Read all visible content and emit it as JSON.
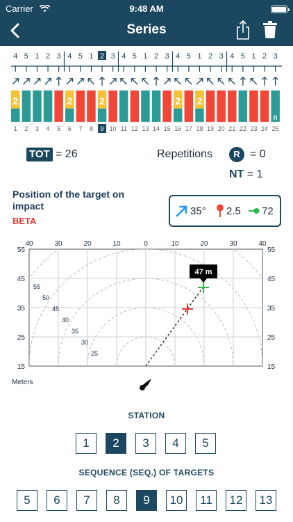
{
  "status_bar": {
    "carrier": "Carrier",
    "time": "9:48 AM"
  },
  "nav": {
    "title": "Series"
  },
  "strip": {
    "top_numbers": [
      "4",
      "5",
      "1",
      "2",
      "3",
      "4",
      "5",
      "1",
      "2",
      "3",
      "4",
      "5",
      "1",
      "2",
      "3",
      "4",
      "5",
      "1",
      "2",
      "3",
      "4",
      "5",
      "1",
      "2",
      "3"
    ],
    "top_selected_index": 8,
    "bars": [
      {
        "color": "teal",
        "label": "2"
      },
      {
        "color": "teal",
        "label": ""
      },
      {
        "color": "teal",
        "label": ""
      },
      {
        "color": "teal",
        "label": ""
      },
      {
        "color": "red",
        "label": ""
      },
      {
        "color": "teal",
        "label": "2"
      },
      {
        "color": "red",
        "label": ""
      },
      {
        "color": "red",
        "label": ""
      },
      {
        "color": "teal",
        "label": "2"
      },
      {
        "color": "red",
        "label": ""
      },
      {
        "color": "teal",
        "label": ""
      },
      {
        "color": "red",
        "label": ""
      },
      {
        "color": "teal",
        "label": ""
      },
      {
        "color": "teal",
        "label": ""
      },
      {
        "color": "red",
        "label": ""
      },
      {
        "color": "teal",
        "label": "2"
      },
      {
        "color": "red",
        "label": ""
      },
      {
        "color": "teal",
        "label": "2"
      },
      {
        "color": "red",
        "label": ""
      },
      {
        "color": "red",
        "label": ""
      },
      {
        "color": "red",
        "label": ""
      },
      {
        "color": "teal",
        "label": ""
      },
      {
        "color": "red",
        "label": ""
      },
      {
        "color": "red",
        "label": ""
      },
      {
        "color": "teal",
        "label": "R"
      }
    ],
    "bottom_numbers": [
      "1",
      "2",
      "3",
      "4",
      "5",
      "6",
      "7",
      "8",
      "9",
      "10",
      "11",
      "12",
      "13",
      "14",
      "15",
      "16",
      "17",
      "18",
      "19",
      "20",
      "21",
      "22",
      "23",
      "24",
      "25"
    ],
    "bottom_selected_index": 8
  },
  "stats": {
    "tot_label": "TOT",
    "tot_value": "= 26",
    "repetitions_label": "Repetitions",
    "repetitions_badge": "R",
    "repetitions_value": "= 0",
    "nt_label": "NT",
    "nt_value": "= 1"
  },
  "position": {
    "title": "Position of the target on impact",
    "subtitle": "BETA"
  },
  "wind": {
    "angle": "35°",
    "pin_value": "2.5",
    "speed_value": "72"
  },
  "plot": {
    "top_labels": [
      "40",
      "30",
      "20",
      "10",
      "0",
      "10",
      "20",
      "30",
      "40"
    ],
    "left_labels": [
      "55",
      "45",
      "35",
      "25",
      "15"
    ],
    "right_labels": [
      "55",
      "45",
      "35",
      "25",
      "15"
    ],
    "arc_labels": [
      "55",
      "50",
      "45",
      "40",
      "35",
      "30",
      "25"
    ],
    "tooltip": "47 m",
    "units": "Meters"
  },
  "station": {
    "label": "STATION",
    "items": [
      "1",
      "2",
      "3",
      "4",
      "5"
    ],
    "selected_index": 1
  },
  "sequence": {
    "label": "SEQUENCE (SEQ.) OF TARGETS",
    "items": [
      "5",
      "6",
      "7",
      "8",
      "9",
      "10",
      "11",
      "12",
      "13"
    ],
    "selected_index": 4
  },
  "colors": {
    "navy": "#1b4760",
    "teal": "#2c9b95",
    "red": "#f24638",
    "yellow": "#f2c33a",
    "green": "#2fb84a"
  },
  "icons": [
    "back-chevron-icon",
    "share-icon",
    "trash-icon",
    "wifi-icon",
    "battery-icon",
    "wind-arrow-icon",
    "pin-icon",
    "speed-icon",
    "shooter-icon"
  ]
}
